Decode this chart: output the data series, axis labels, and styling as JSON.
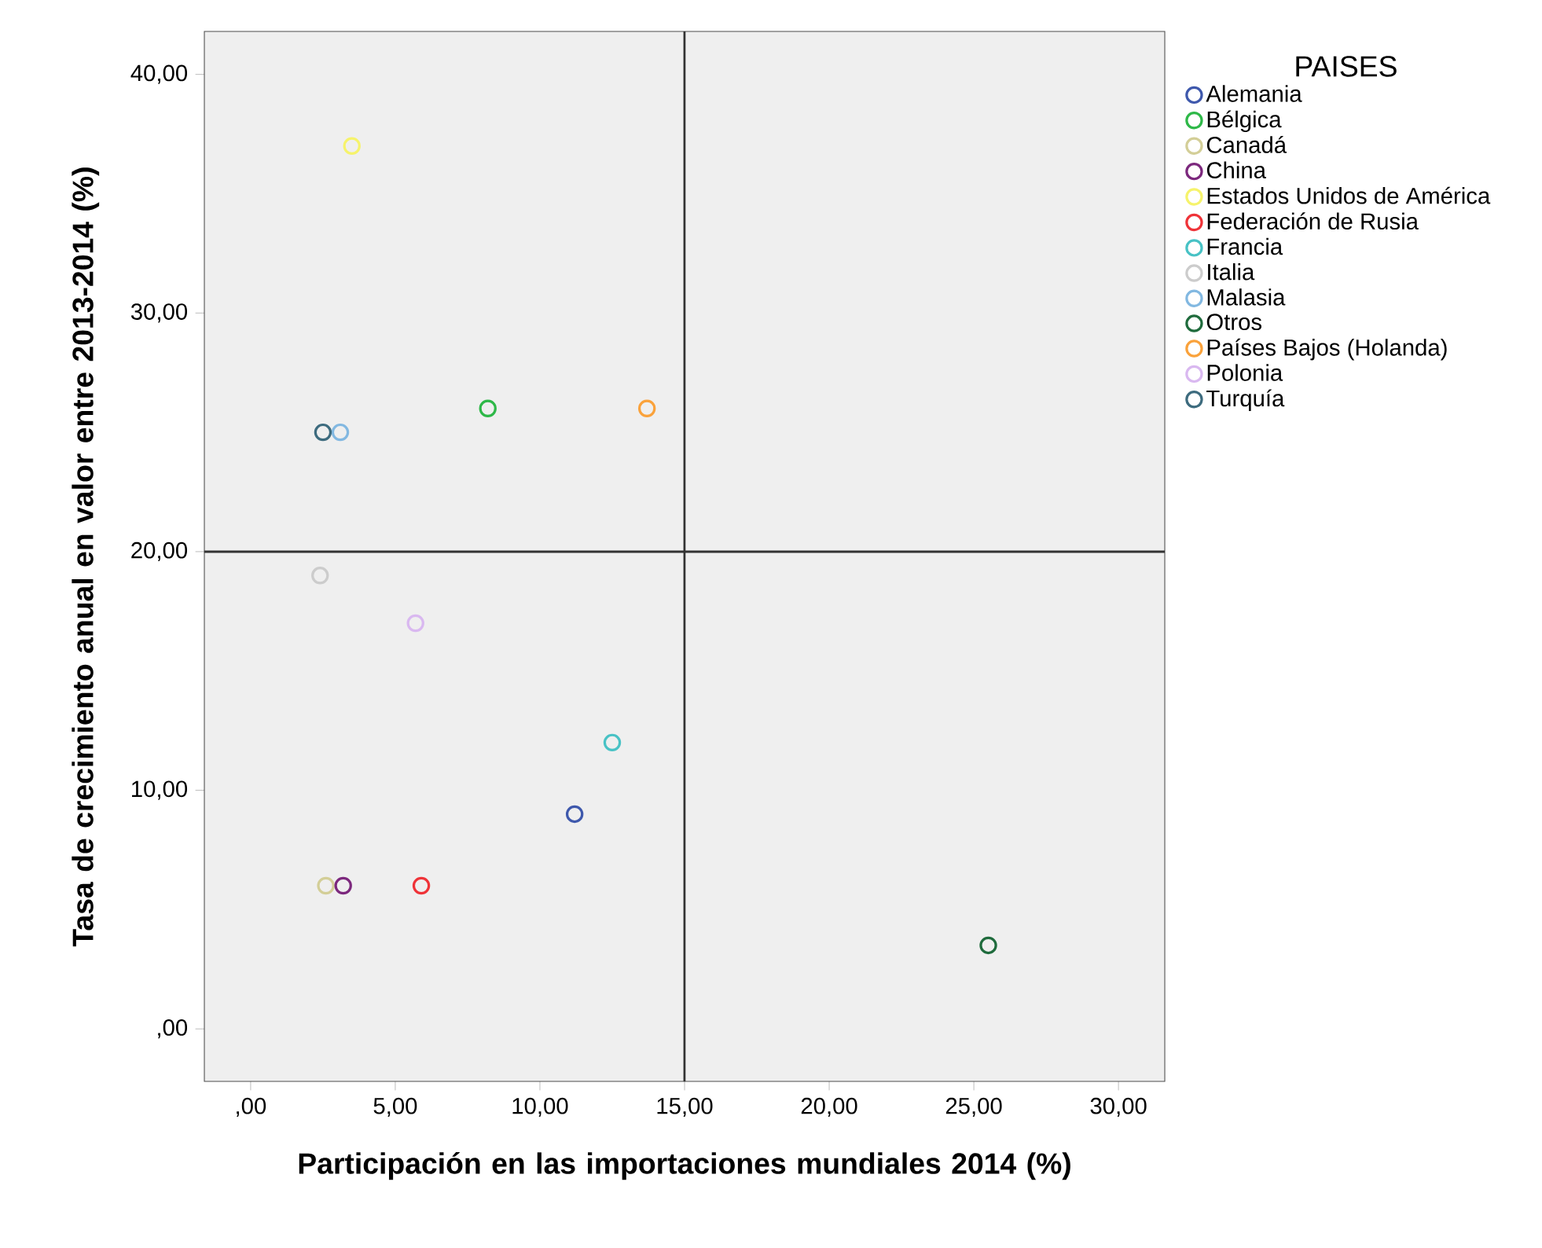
{
  "chart_data": {
    "type": "scatter",
    "xlabel": "Participación en las importaciones mundiales 2014 (%)",
    "ylabel": "Tasa de crecimiento anual en valor entre 2013-2014 (%)",
    "legend_title": "PAISES",
    "marker": "circle",
    "legend": "right",
    "grid": false,
    "xlim": [
      -1.6,
      31.6
    ],
    "ylim": [
      -2.2,
      41.8
    ],
    "xticks": [
      {
        "value": 0,
        "label": ",00"
      },
      {
        "value": 5,
        "label": "5,00"
      },
      {
        "value": 10,
        "label": "10,00"
      },
      {
        "value": 15,
        "label": "15,00"
      },
      {
        "value": 20,
        "label": "20,00"
      },
      {
        "value": 25,
        "label": "25,00"
      },
      {
        "value": 30,
        "label": "30,00"
      }
    ],
    "yticks": [
      {
        "value": 0,
        "label": ",00"
      },
      {
        "value": 10,
        "label": "10,00"
      },
      {
        "value": 20,
        "label": "20,00"
      },
      {
        "value": 30,
        "label": "30,00"
      },
      {
        "value": 40,
        "label": "40,00"
      }
    ],
    "ref_lines": [
      {
        "axis": "x",
        "value": 15,
        "color": "#333333"
      },
      {
        "axis": "y",
        "value": 20,
        "color": "#333333"
      }
    ],
    "series": [
      {
        "name": "Alemania",
        "color": "#3e58ac",
        "x": [
          11.2
        ],
        "values": [
          9.0
        ]
      },
      {
        "name": "Bélgica",
        "color": "#2eb848",
        "x": [
          8.2
        ],
        "values": [
          26.0
        ]
      },
      {
        "name": "Canadá",
        "color": "#d3ce97",
        "x": [
          2.6
        ],
        "values": [
          6.0
        ]
      },
      {
        "name": "China",
        "color": "#7c287d",
        "x": [
          3.2
        ],
        "values": [
          6.0
        ]
      },
      {
        "name": "Estados Unidos de América",
        "color": "#f6f36b",
        "x": [
          3.5
        ],
        "values": [
          37.0
        ]
      },
      {
        "name": "Federación de Rusia",
        "color": "#ef3338",
        "x": [
          5.9
        ],
        "values": [
          6.0
        ]
      },
      {
        "name": "Francia",
        "color": "#48c2c5",
        "x": [
          12.5
        ],
        "values": [
          12.0
        ]
      },
      {
        "name": "Italia",
        "color": "#cccccc",
        "x": [
          2.4
        ],
        "values": [
          19.0
        ]
      },
      {
        "name": "Malasia",
        "color": "#82b8e1",
        "x": [
          3.1
        ],
        "values": [
          25.0
        ]
      },
      {
        "name": "Otros",
        "color": "#1f6b3c",
        "x": [
          25.5
        ],
        "values": [
          3.5
        ]
      },
      {
        "name": "Países Bajos (Holanda)",
        "color": "#faa23b",
        "x": [
          13.7
        ],
        "values": [
          26.0
        ]
      },
      {
        "name": "Polonia",
        "color": "#d9b8f0",
        "x": [
          5.7
        ],
        "values": [
          17.0
        ]
      },
      {
        "name": "Turquía",
        "color": "#3d6b7e",
        "x": [
          2.5
        ],
        "values": [
          25.0
        ]
      }
    ]
  }
}
